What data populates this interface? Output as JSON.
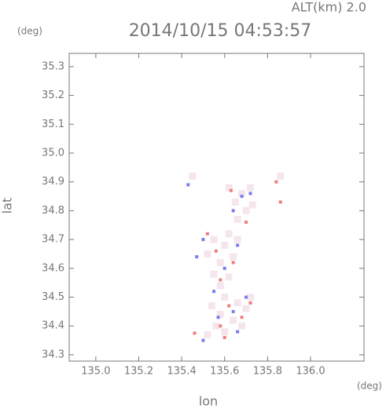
{
  "chart_data": {
    "type": "scatter",
    "title": "2014/10/15 04:53:57",
    "subtitle": "ALT(km) 2.0",
    "x_label": "lon",
    "y_label": "lat",
    "x_unit": "(deg)",
    "y_unit": "(deg)",
    "xlim": [
      134.876,
      136.249
    ],
    "ylim": [
      34.278,
      35.346
    ],
    "xticks": [
      {
        "value": 135.0,
        "label": "135.0"
      },
      135.2,
      135.4,
      135.6,
      135.8,
      {
        "value": 136.0,
        "label": "136.0"
      }
    ],
    "yticks": [
      34.3,
      34.4,
      34.5,
      34.6,
      34.7,
      34.8,
      34.9,
      {
        "value": 35.0,
        "label": "35.0"
      },
      35.1,
      35.2,
      35.3
    ],
    "series": [
      {
        "color": "#f5e6ee",
        "x": [
          135.45,
          135.62,
          135.68,
          135.72,
          135.65,
          135.7,
          135.66,
          135.73,
          135.55,
          135.6,
          135.52,
          135.58,
          135.64,
          135.66,
          135.55,
          135.62,
          135.6,
          135.66,
          135.7,
          135.58,
          135.64,
          135.56,
          135.52,
          135.6,
          135.68,
          135.72,
          135.54,
          135.62,
          135.86,
          135.58
        ],
        "y": [
          34.92,
          34.88,
          34.86,
          34.88,
          34.83,
          34.8,
          34.77,
          34.82,
          34.7,
          34.68,
          34.65,
          34.62,
          34.64,
          34.7,
          34.58,
          34.57,
          34.5,
          34.48,
          34.46,
          34.44,
          34.42,
          34.4,
          34.37,
          34.38,
          34.4,
          34.5,
          34.47,
          34.72,
          34.92,
          34.54
        ]
      },
      {
        "color": "#f07c7c",
        "x": [
          135.63,
          135.7,
          135.84,
          135.56,
          135.64,
          135.58,
          135.62,
          135.68,
          135.58,
          135.46,
          135.72,
          135.6,
          135.52,
          135.86
        ],
        "y": [
          34.87,
          34.76,
          34.9,
          34.66,
          34.62,
          34.56,
          34.47,
          34.43,
          34.4,
          34.375,
          34.48,
          34.36,
          34.72,
          34.83
        ]
      },
      {
        "color": "#7c7cf0",
        "x": [
          135.68,
          135.64,
          135.5,
          135.47,
          135.6,
          135.66,
          135.55,
          135.7,
          135.5,
          135.64,
          135.43,
          135.72,
          135.57,
          135.66
        ],
        "y": [
          34.85,
          34.8,
          34.7,
          34.64,
          34.6,
          34.68,
          34.52,
          34.5,
          34.35,
          34.45,
          34.89,
          34.86,
          34.43,
          34.38
        ]
      }
    ]
  }
}
